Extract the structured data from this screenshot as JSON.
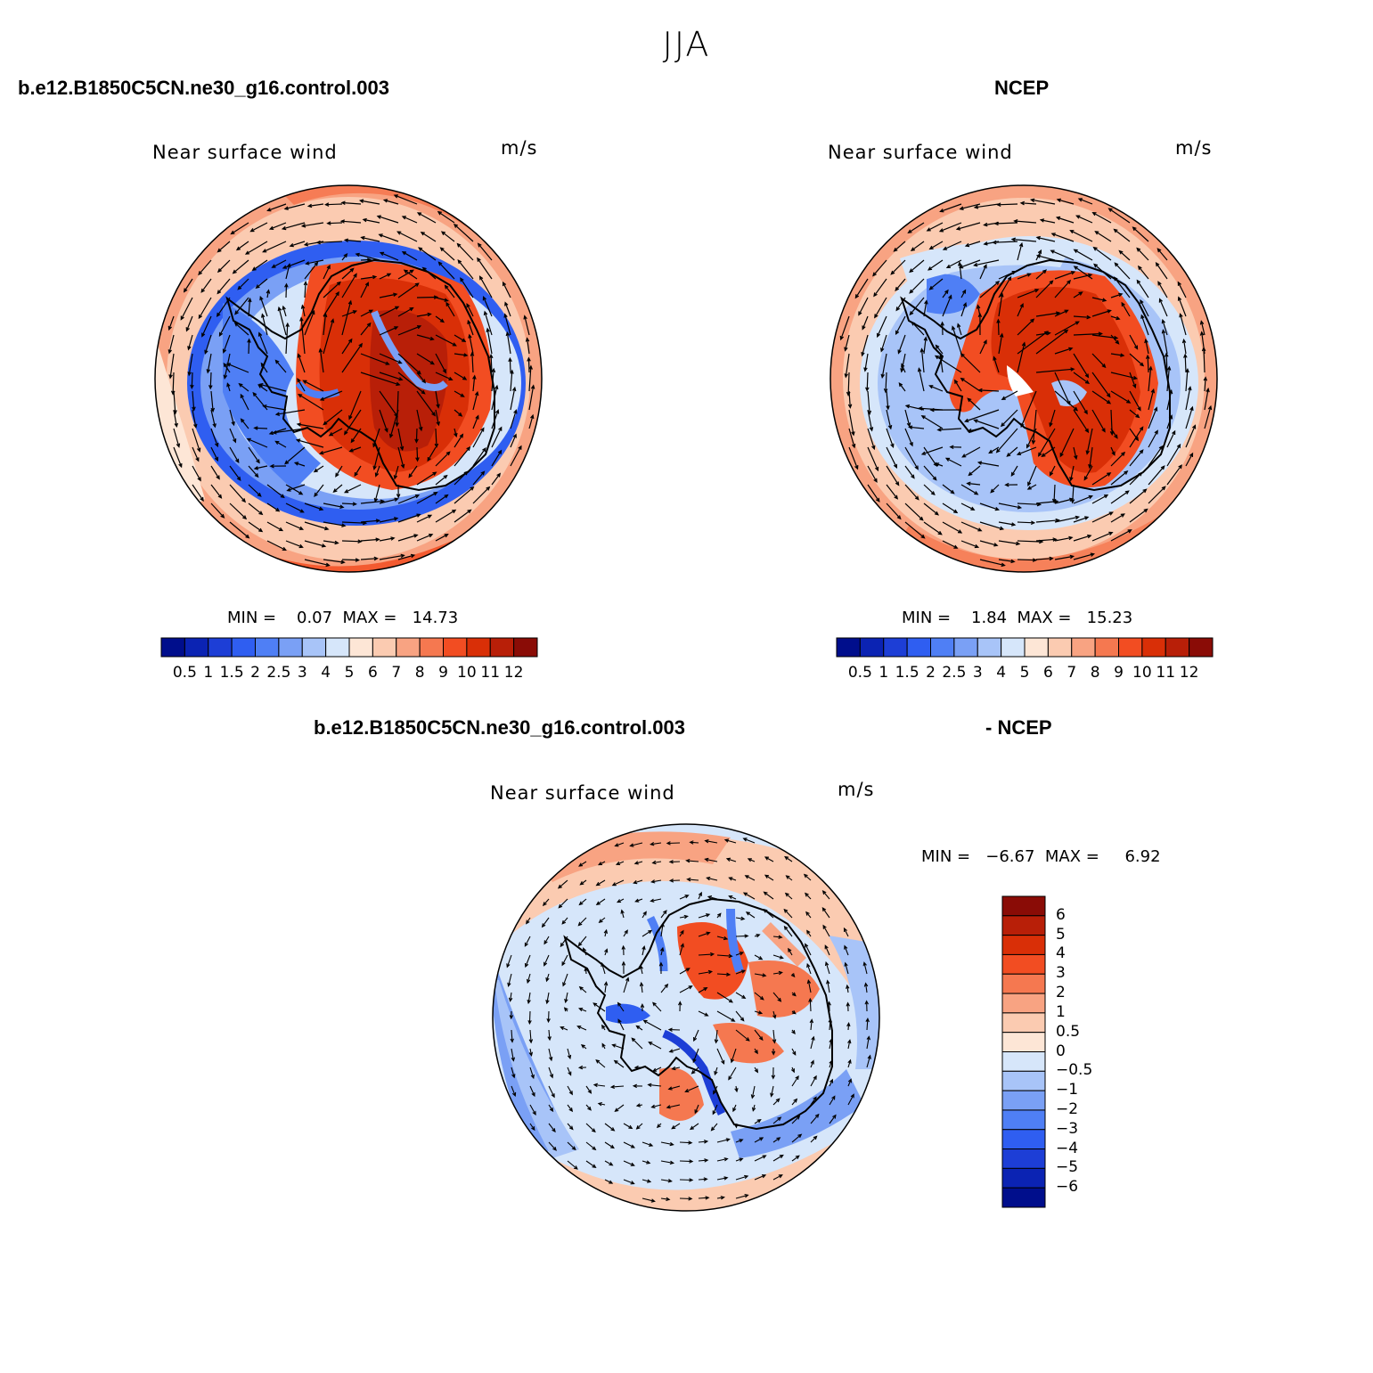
{
  "title": "JJA",
  "colors": {
    "abs_palette": [
      "#000e8c",
      "#0b23b3",
      "#1d3ed6",
      "#2f5ef1",
      "#4f7ff5",
      "#7aa0f5",
      "#a8c4f8",
      "#d6e6fa",
      "#fde6d6",
      "#fbcbb1",
      "#f8a382",
      "#f57850",
      "#f24d22",
      "#d92f07",
      "#b81f08",
      "#8a0c06"
    ],
    "diff_palette": [
      "#000e8c",
      "#0b23b3",
      "#1d3ed6",
      "#2f5ef1",
      "#4f7ff5",
      "#7aa0f5",
      "#a8c4f8",
      "#d6e6fa",
      "#fde6d6",
      "#fbcbb1",
      "#f8a382",
      "#f57850",
      "#f24d22",
      "#d92f07",
      "#b81f08",
      "#8a0c06"
    ]
  },
  "panels": {
    "model": {
      "case_title": "b.e12.B1850C5CN.ne30_g16.control.003",
      "subtitle": "Near surface wind",
      "units": "m/s",
      "minmax": "MIN =    0.07  MAX =   14.73"
    },
    "ncep": {
      "case_title": "NCEP",
      "subtitle": "Near surface wind",
      "units": "m/s",
      "minmax": "MIN =    1.84  MAX =   15.23"
    },
    "diff": {
      "case_title_a": "b.e12.B1850C5CN.ne30_g16.control.003",
      "case_title_b": "- NCEP",
      "subtitle": "Near surface wind",
      "units": "m/s",
      "minmax": "MIN =   −6.67  MAX =     6.92"
    }
  },
  "colorbar_abs_labels": [
    "0.5",
    "1",
    "1.5",
    "2",
    "2.5",
    "3",
    "4",
    "5",
    "6",
    "7",
    "8",
    "9",
    "10",
    "11",
    "12"
  ],
  "colorbar_diff_labels": [
    "6",
    "5",
    "4",
    "3",
    "2",
    "1",
    "0.5",
    "0",
    "−0.5",
    "−1",
    "−2",
    "−3",
    "−4",
    "−5",
    "−6"
  ]
}
